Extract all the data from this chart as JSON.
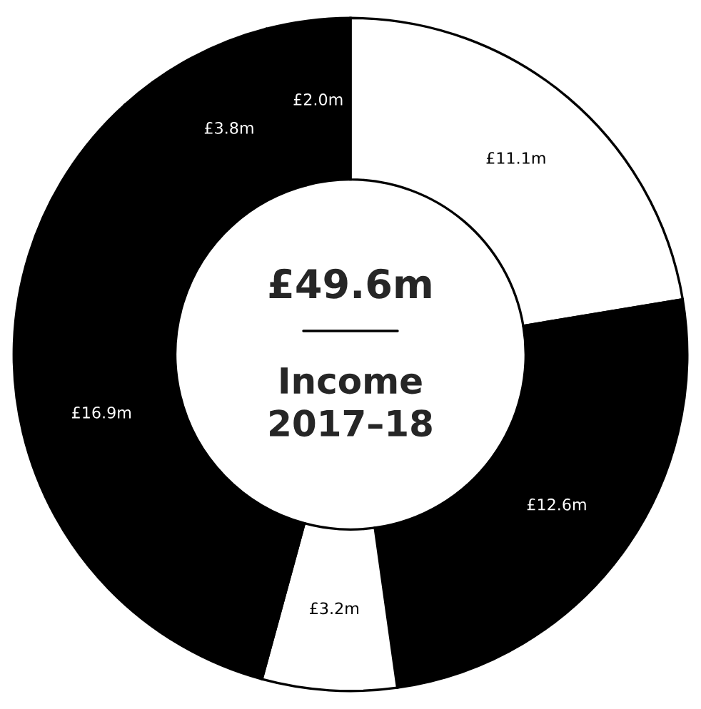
{
  "chart_data": {
    "type": "donut",
    "title": "£49.6m",
    "subtitle": "Income\n2017–18",
    "categories": [
      null,
      null,
      null,
      null,
      null,
      null
    ],
    "values": [
      11.1,
      12.6,
      3.2,
      16.9,
      3.8,
      2.0
    ],
    "value_labels": [
      "£11.1m",
      "£12.6m",
      "£3.2m",
      "£16.9m",
      "£3.8m",
      "£2.0m"
    ],
    "colors": [
      "#ffffff",
      "#000000",
      "#ffffff",
      "#000000",
      "#000000",
      "#000000"
    ],
    "legend": false
  }
}
